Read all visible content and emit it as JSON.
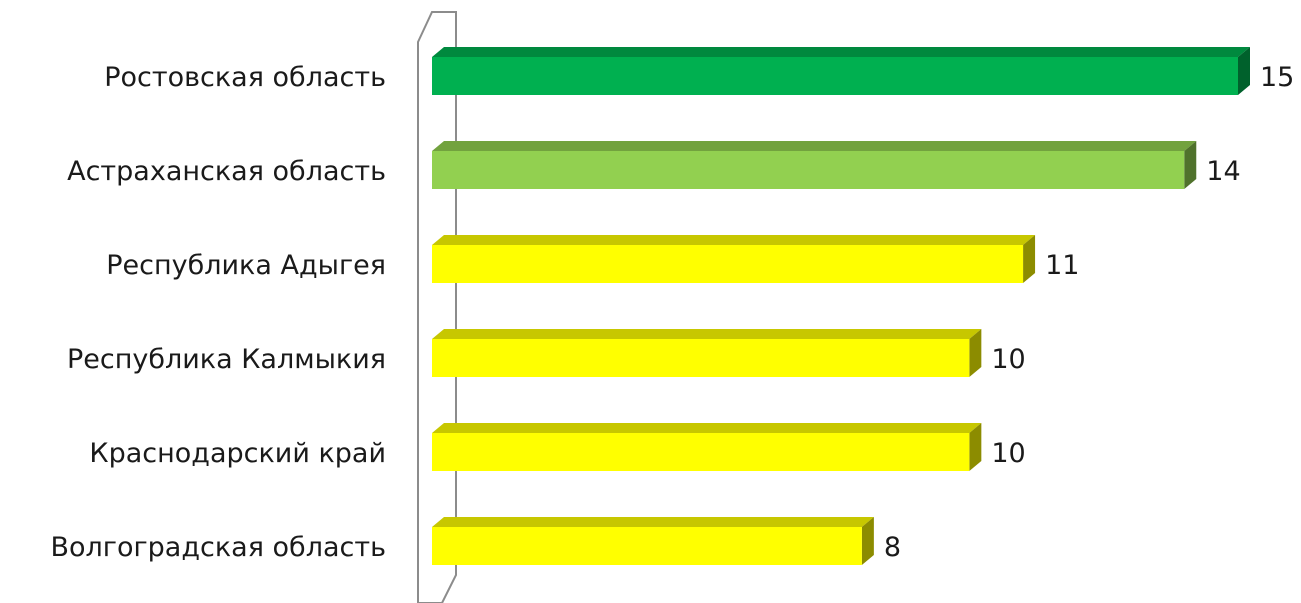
{
  "chart_data": {
    "type": "bar",
    "orientation": "horizontal",
    "style": "3d",
    "categories": [
      "Ростовская область",
      "Астраханская область",
      "Республика Адыгея",
      "Республика Калмыкия",
      "Краснодарский край",
      "Волгоградская область"
    ],
    "values": [
      15,
      14,
      11,
      10,
      10,
      8
    ],
    "data_labels": [
      "15",
      "14",
      "11",
      "10",
      "10",
      "8"
    ],
    "bar_colors": [
      "#00b050",
      "#92d050",
      "#ffff00",
      "#ffff00",
      "#ffff00",
      "#ffff00"
    ],
    "xlim": [
      0,
      15
    ],
    "grid": false,
    "legend": "none"
  }
}
